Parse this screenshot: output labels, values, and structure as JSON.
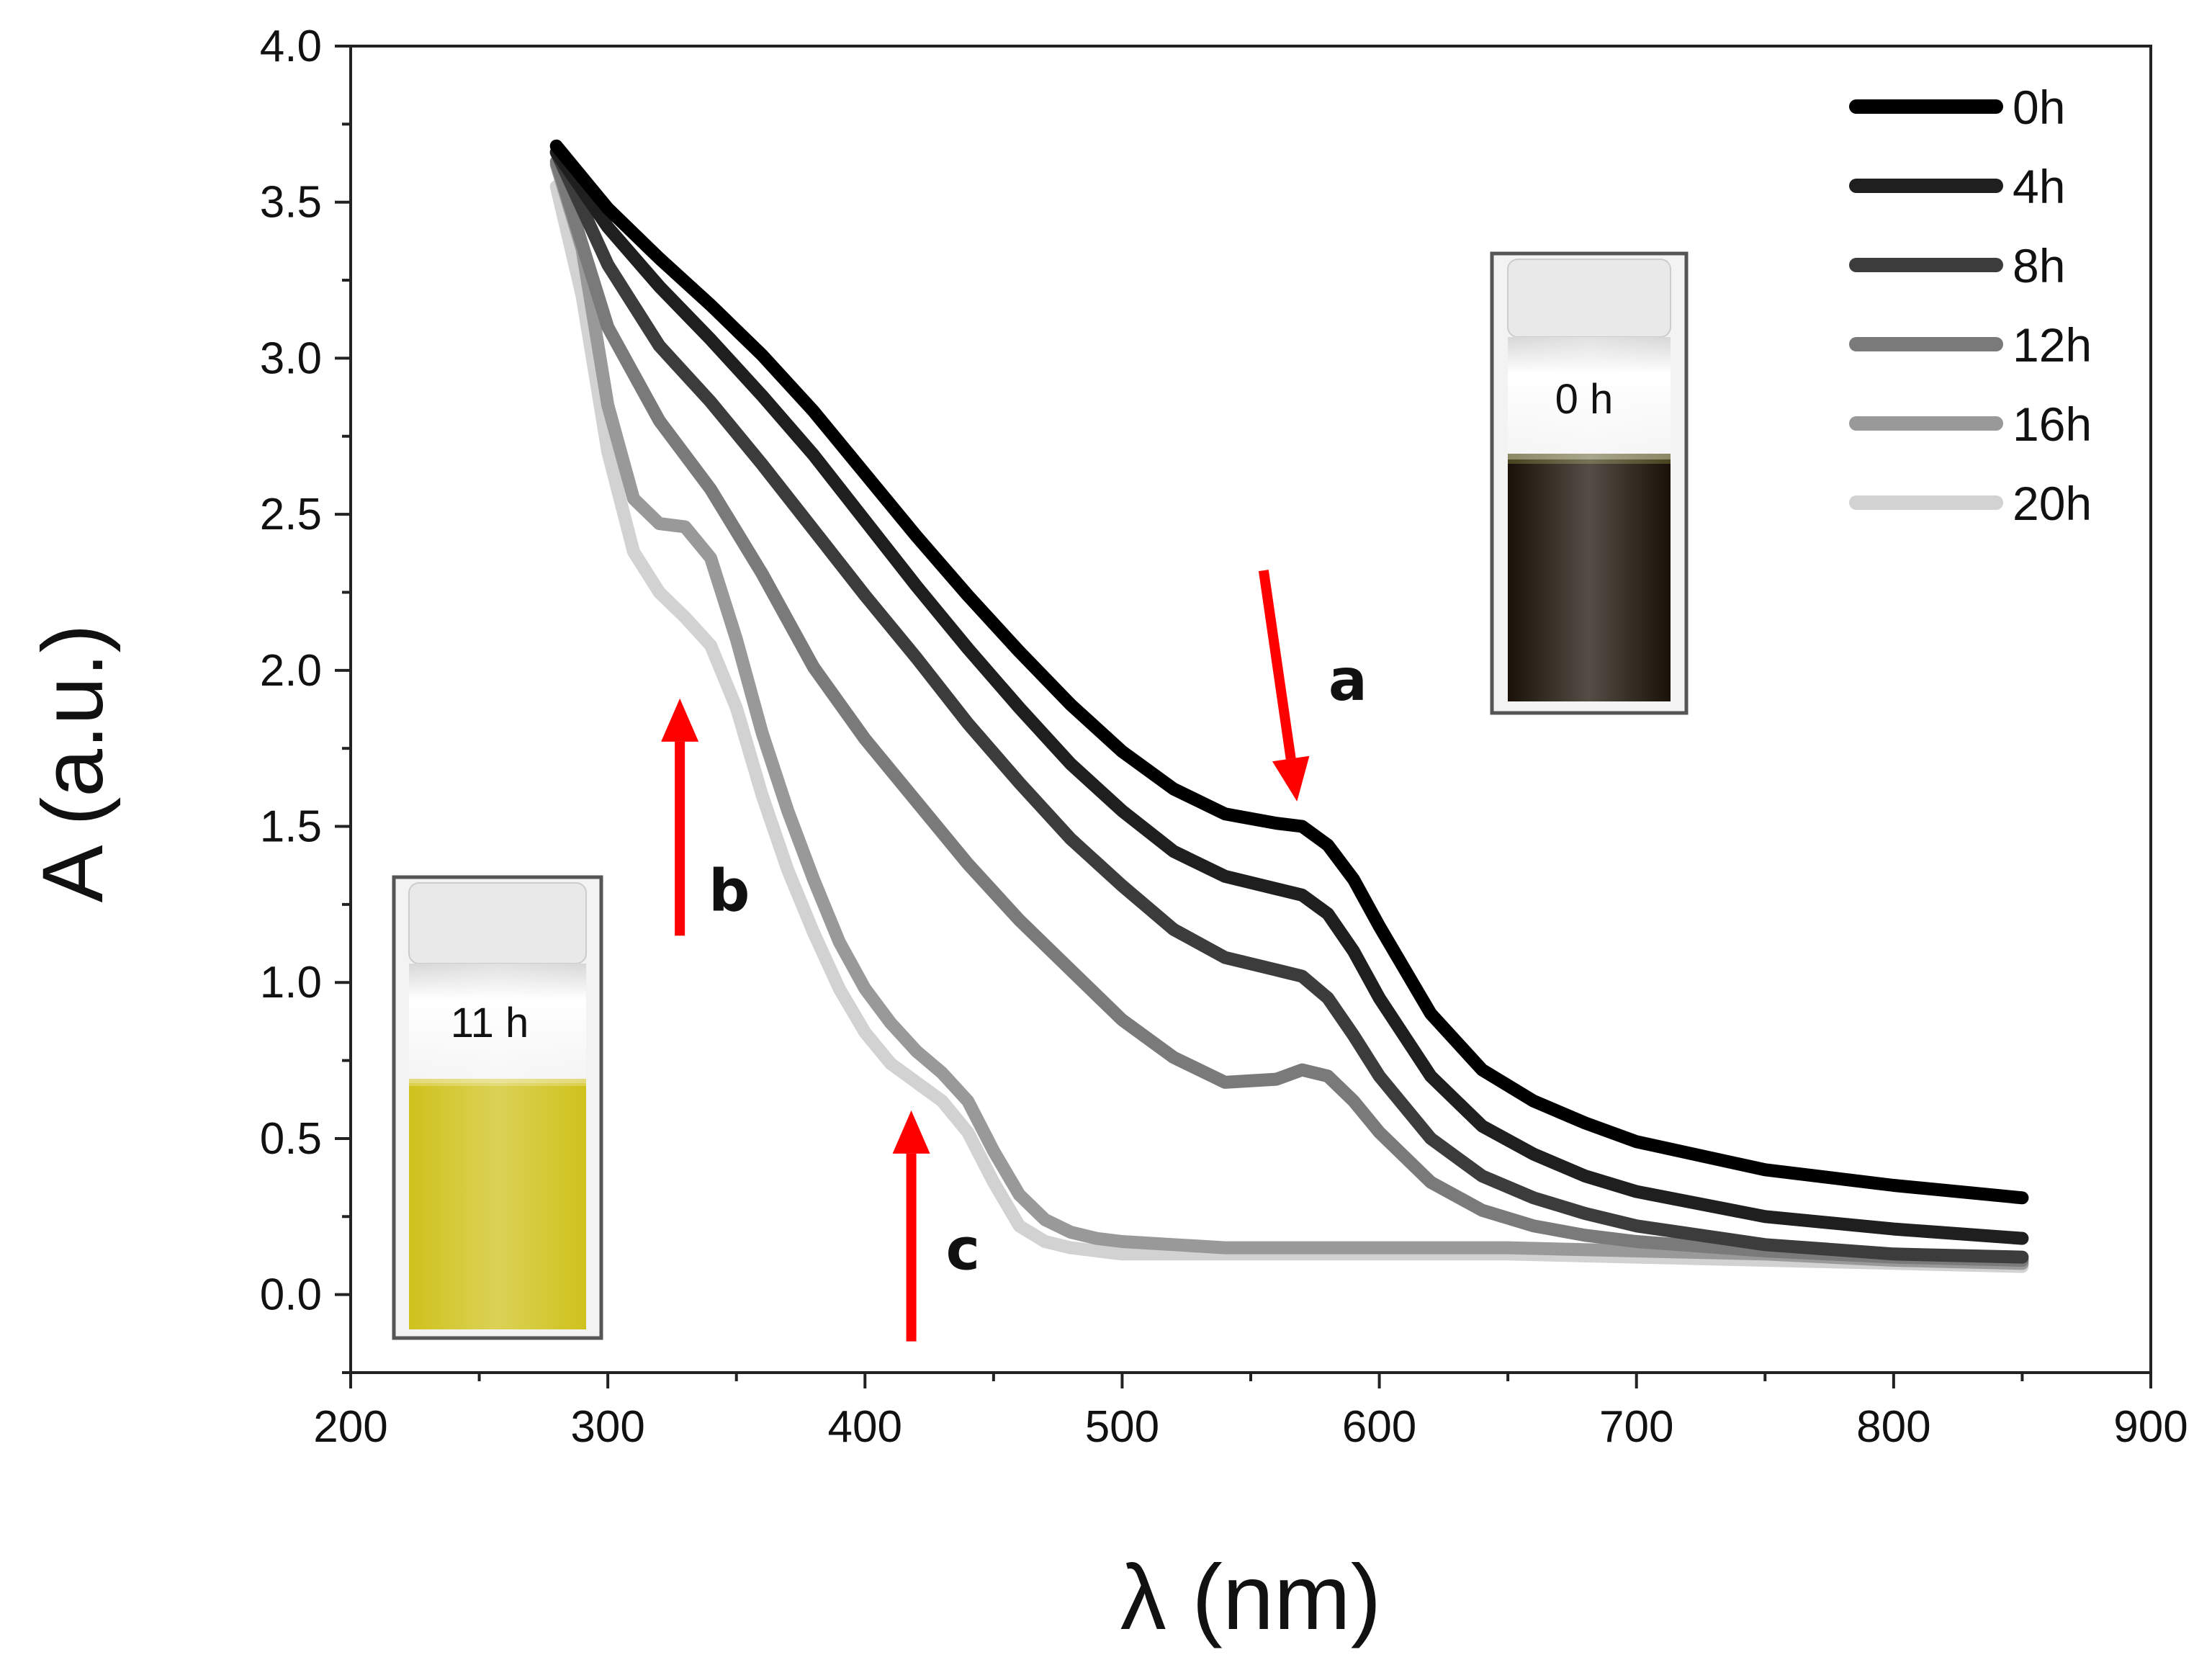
{
  "chart_data": {
    "type": "line",
    "title": "",
    "xlabel": "λ (nm)",
    "ylabel": "A  (a.u.)",
    "xlim": [
      200,
      900
    ],
    "ylim": [
      -0.25,
      4.0
    ],
    "xticks": [
      200,
      300,
      400,
      500,
      600,
      700,
      800,
      900
    ],
    "yticks": [
      0.0,
      0.5,
      1.0,
      1.5,
      2.0,
      2.5,
      3.0,
      3.5,
      4.0
    ],
    "xtick_labels": [
      "200",
      "300",
      "400",
      "500",
      "600",
      "700",
      "800",
      "900"
    ],
    "ytick_labels": [
      "0.0",
      "0.5",
      "1.0",
      "1.5",
      "2.0",
      "2.5",
      "3.0",
      "3.5",
      "4.0"
    ],
    "grid": false,
    "legend_position": "top-right",
    "series": [
      {
        "name": "0h",
        "color": "#000000",
        "x": [
          280,
          300,
          320,
          340,
          360,
          380,
          400,
          420,
          440,
          460,
          480,
          500,
          520,
          540,
          560,
          570,
          580,
          590,
          600,
          620,
          640,
          660,
          680,
          700,
          750,
          800,
          850
        ],
        "y": [
          3.68,
          3.48,
          3.32,
          3.17,
          3.01,
          2.83,
          2.63,
          2.43,
          2.24,
          2.06,
          1.89,
          1.74,
          1.62,
          1.54,
          1.51,
          1.5,
          1.44,
          1.33,
          1.18,
          0.9,
          0.72,
          0.62,
          0.55,
          0.49,
          0.4,
          0.35,
          0.31
        ]
      },
      {
        "name": "4h",
        "color": "#1f1f1f",
        "x": [
          280,
          300,
          320,
          340,
          360,
          380,
          400,
          420,
          440,
          460,
          480,
          500,
          520,
          540,
          560,
          570,
          580,
          590,
          600,
          620,
          640,
          660,
          680,
          700,
          750,
          800,
          850
        ],
        "y": [
          3.66,
          3.42,
          3.23,
          3.06,
          2.88,
          2.69,
          2.48,
          2.27,
          2.07,
          1.88,
          1.7,
          1.55,
          1.42,
          1.34,
          1.3,
          1.28,
          1.22,
          1.1,
          0.95,
          0.7,
          0.54,
          0.45,
          0.38,
          0.33,
          0.25,
          0.21,
          0.18
        ]
      },
      {
        "name": "8h",
        "color": "#3c3c3c",
        "x": [
          280,
          300,
          320,
          340,
          360,
          380,
          400,
          420,
          440,
          460,
          480,
          500,
          520,
          540,
          560,
          570,
          580,
          590,
          600,
          620,
          640,
          660,
          680,
          700,
          750,
          800,
          850
        ],
        "y": [
          3.66,
          3.3,
          3.04,
          2.86,
          2.66,
          2.45,
          2.24,
          2.04,
          1.83,
          1.64,
          1.46,
          1.31,
          1.17,
          1.08,
          1.04,
          1.02,
          0.95,
          0.83,
          0.7,
          0.5,
          0.38,
          0.31,
          0.26,
          0.22,
          0.16,
          0.13,
          0.12
        ]
      },
      {
        "name": "12h",
        "color": "#7a7a7a",
        "x": [
          280,
          300,
          320,
          340,
          360,
          380,
          400,
          420,
          440,
          460,
          480,
          500,
          520,
          540,
          560,
          570,
          580,
          590,
          600,
          620,
          640,
          660,
          680,
          700,
          750,
          800,
          850
        ],
        "y": [
          3.63,
          3.1,
          2.8,
          2.58,
          2.31,
          2.01,
          1.78,
          1.58,
          1.38,
          1.2,
          1.04,
          0.88,
          0.76,
          0.68,
          0.69,
          0.72,
          0.7,
          0.62,
          0.52,
          0.36,
          0.27,
          0.22,
          0.19,
          0.17,
          0.14,
          0.12,
          0.11
        ]
      },
      {
        "name": "16h",
        "color": "#999999",
        "x": [
          280,
          290,
          300,
          310,
          320,
          330,
          340,
          350,
          360,
          370,
          380,
          390,
          400,
          410,
          420,
          430,
          440,
          450,
          460,
          470,
          480,
          490,
          500,
          520,
          540,
          560,
          580,
          600,
          650,
          700,
          750,
          800,
          850
        ],
        "y": [
          3.62,
          3.35,
          2.85,
          2.55,
          2.47,
          2.46,
          2.36,
          2.1,
          1.8,
          1.55,
          1.33,
          1.13,
          0.98,
          0.87,
          0.78,
          0.71,
          0.62,
          0.46,
          0.32,
          0.24,
          0.2,
          0.18,
          0.17,
          0.16,
          0.15,
          0.15,
          0.15,
          0.15,
          0.15,
          0.14,
          0.13,
          0.11,
          0.1
        ]
      },
      {
        "name": "20h",
        "color": "#d2d2d2",
        "x": [
          280,
          290,
          300,
          310,
          320,
          330,
          340,
          350,
          360,
          370,
          380,
          390,
          400,
          410,
          420,
          430,
          440,
          450,
          460,
          470,
          480,
          490,
          500,
          520,
          540,
          560,
          580,
          600,
          650,
          700,
          750,
          800,
          850
        ],
        "y": [
          3.55,
          3.2,
          2.7,
          2.38,
          2.25,
          2.17,
          2.08,
          1.88,
          1.6,
          1.36,
          1.16,
          0.98,
          0.84,
          0.74,
          0.68,
          0.62,
          0.52,
          0.36,
          0.22,
          0.17,
          0.15,
          0.14,
          0.13,
          0.13,
          0.13,
          0.13,
          0.13,
          0.13,
          0.13,
          0.12,
          0.11,
          0.1,
          0.09
        ]
      }
    ],
    "annotations": [
      {
        "label": "a",
        "x_from": 555,
        "y_from": 2.32,
        "x_to": 568,
        "y_to": 1.58,
        "color": "#ff0000"
      },
      {
        "label": "b",
        "x_from": 328,
        "y_from": 1.15,
        "x_to": 328,
        "y_to": 1.91,
        "color": "#ff0000"
      },
      {
        "label": "c",
        "x_from": 418,
        "y_from": -0.15,
        "x_to": 418,
        "y_to": 0.59,
        "color": "#ff0000"
      }
    ],
    "insets": [
      {
        "label": "0 h",
        "liquid_color": "#1a1208",
        "position": "upper-right"
      },
      {
        "label": "11 h",
        "liquid_color": "#cfc21d",
        "position": "lower-left"
      }
    ]
  }
}
